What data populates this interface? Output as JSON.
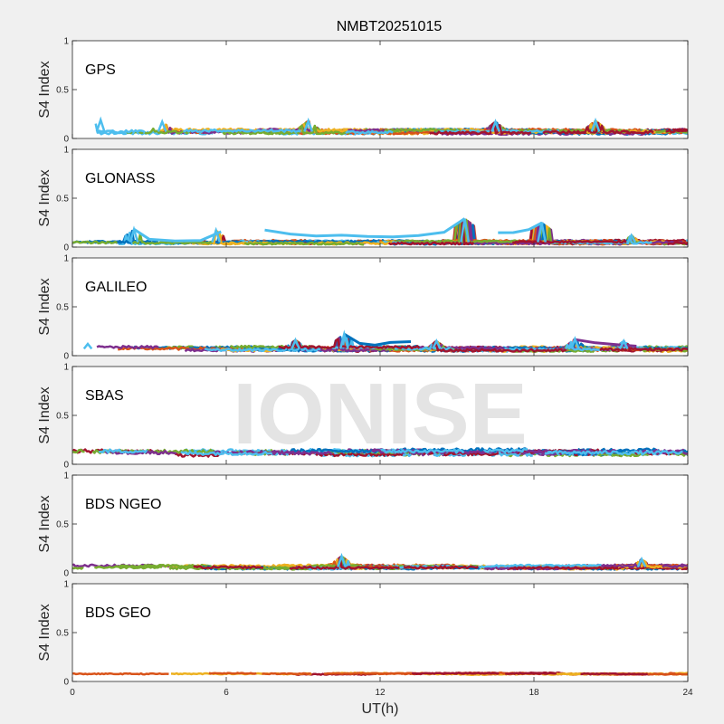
{
  "figure": {
    "title": "NMBT20251015",
    "watermark": "IONISE",
    "xlabel": "UT(h)",
    "background": "#f0f0f0",
    "axes_background": "#ffffff"
  },
  "chart_data": [
    {
      "type": "line",
      "panel_label": "GPS",
      "ylabel": "S4 Index",
      "xlim": [
        0,
        24
      ],
      "ylim": [
        0,
        1
      ],
      "x_ticks": [
        0,
        6,
        12,
        18,
        24
      ],
      "y_ticks": [
        0,
        0.5,
        1
      ],
      "y_tick_labels": [
        "0",
        "0.5",
        "1"
      ],
      "base_level": 0.07,
      "noise": 0.025,
      "spikes": [
        [
          1.1,
          0.19
        ],
        [
          3.5,
          0.17
        ],
        [
          9.2,
          0.18
        ],
        [
          16.5,
          0.17
        ],
        [
          20.4,
          0.18
        ]
      ],
      "series_colors": [
        "#0072BD",
        "#D95319",
        "#EDB120",
        "#7E2F8E",
        "#77AC30",
        "#4DBEEE",
        "#A2142F"
      ]
    },
    {
      "type": "line",
      "panel_label": "GLONASS",
      "ylabel": "S4 Index",
      "xlim": [
        0,
        24
      ],
      "ylim": [
        0,
        1
      ],
      "x_ticks": [
        0,
        6,
        12,
        18,
        24
      ],
      "y_ticks": [
        0,
        0.5,
        1
      ],
      "y_tick_labels": [
        "0",
        "0.5",
        "1"
      ],
      "base_level": 0.05,
      "noise": 0.02,
      "spikes": [
        [
          2.4,
          0.18
        ],
        [
          5.6,
          0.17
        ],
        [
          15.3,
          0.29
        ],
        [
          18.3,
          0.25
        ],
        [
          21.8,
          0.12
        ]
      ],
      "highlight_arcs": [
        {
          "color": "#4DBEEE",
          "x": [
            2.4,
            3.0,
            4.0,
            5.0,
            5.8
          ],
          "y": [
            0.18,
            0.08,
            0.06,
            0.07,
            0.16
          ]
        },
        {
          "color": "#4DBEEE",
          "x": [
            7.5,
            8.5,
            9.5,
            10.5,
            11.5,
            12.5,
            13.5,
            14.5,
            15.3
          ],
          "y": [
            0.17,
            0.13,
            0.11,
            0.12,
            0.11,
            0.1,
            0.12,
            0.15,
            0.29
          ]
        },
        {
          "color": "#4DBEEE",
          "x": [
            16.6,
            17.2,
            17.8,
            18.3
          ],
          "y": [
            0.15,
            0.15,
            0.18,
            0.25
          ]
        }
      ],
      "series_colors": [
        "#0072BD",
        "#D95319",
        "#EDB120",
        "#7E2F8E",
        "#77AC30",
        "#4DBEEE",
        "#A2142F"
      ]
    },
    {
      "type": "line",
      "panel_label": "GALILEO",
      "ylabel": "S4 Index",
      "xlim": [
        0,
        24
      ],
      "ylim": [
        0,
        1
      ],
      "x_ticks": [
        0,
        6,
        12,
        18,
        24
      ],
      "y_ticks": [
        0,
        0.5,
        1
      ],
      "y_tick_labels": [
        "0",
        "0.5",
        "1"
      ],
      "base_level": 0.07,
      "noise": 0.025,
      "spikes": [
        [
          0.6,
          0.12
        ],
        [
          8.7,
          0.16
        ],
        [
          10.6,
          0.22
        ],
        [
          14.2,
          0.15
        ],
        [
          19.6,
          0.17
        ],
        [
          21.5,
          0.15
        ]
      ],
      "highlight_arcs": [
        {
          "color": "#0072BD",
          "x": [
            10.6,
            11.2,
            11.8,
            12.4,
            13.2
          ],
          "y": [
            0.22,
            0.13,
            0.11,
            0.13,
            0.14
          ]
        },
        {
          "color": "#7E2F8E",
          "x": [
            19.6,
            20.4,
            21.2,
            22.0
          ],
          "y": [
            0.17,
            0.13,
            0.11,
            0.1
          ]
        }
      ],
      "series_colors": [
        "#0072BD",
        "#D95319",
        "#EDB120",
        "#7E2F8E",
        "#77AC30",
        "#4DBEEE",
        "#A2142F"
      ]
    },
    {
      "type": "line",
      "panel_label": "SBAS",
      "ylabel": "S4 Index",
      "xlim": [
        0,
        24
      ],
      "ylim": [
        0,
        1
      ],
      "x_ticks": [
        0,
        6,
        12,
        18,
        24
      ],
      "y_ticks": [
        0,
        0.5,
        1
      ],
      "y_tick_labels": [
        "0",
        "0.5",
        "1"
      ],
      "base_level": 0.12,
      "noise": 0.035,
      "spikes": [],
      "series_colors": [
        "#A2142F",
        "#0072BD",
        "#77AC30",
        "#7E2F8E",
        "#4DBEEE"
      ]
    },
    {
      "type": "line",
      "panel_label": "BDS NGEO",
      "ylabel": "S4 Index",
      "xlim": [
        0,
        24
      ],
      "ylim": [
        0,
        1
      ],
      "x_ticks": [
        0,
        6,
        12,
        18,
        24
      ],
      "y_ticks": [
        0,
        0.5,
        1
      ],
      "y_tick_labels": [
        "0",
        "0.5",
        "1"
      ],
      "base_level": 0.06,
      "noise": 0.022,
      "spikes": [
        [
          10.5,
          0.17
        ],
        [
          22.2,
          0.14
        ]
      ],
      "series_colors": [
        "#0072BD",
        "#D95319",
        "#EDB120",
        "#7E2F8E",
        "#77AC30",
        "#4DBEEE",
        "#A2142F"
      ]
    },
    {
      "type": "line",
      "panel_label": "BDS GEO",
      "ylabel": "S4 Index",
      "xlim": [
        0,
        24
      ],
      "ylim": [
        0,
        1
      ],
      "x_ticks": [
        0,
        6,
        12,
        18,
        24
      ],
      "y_ticks": [
        0,
        0.5,
        1
      ],
      "y_tick_labels": [
        "0",
        "0.5",
        "1"
      ],
      "base_level": 0.08,
      "noise": 0.01,
      "spikes": [],
      "series_colors": [
        "#EDB120",
        "#D95319",
        "#A2142F"
      ]
    }
  ]
}
